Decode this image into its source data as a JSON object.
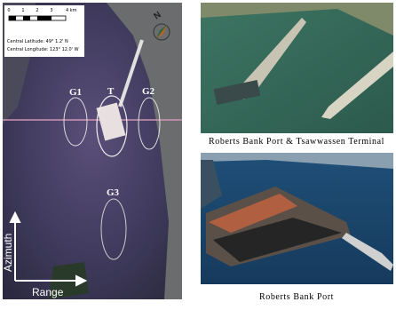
{
  "sar_image": {
    "scale_labels": [
      "0",
      "1",
      "2",
      "3",
      "4 km"
    ],
    "central_latitude": "Central Latitude:    49°  1.2' N",
    "central_longitude": "Central Longitude: 123° 12.0' W",
    "north": "N",
    "targets": [
      "G1",
      "T",
      "G2",
      "G3"
    ],
    "azimuth": "Azimuth",
    "range": "Range"
  },
  "photos": [
    {
      "caption": "Roberts Bank Port & Tsawwassen Terminal"
    },
    {
      "caption": "Roberts Bank Port"
    }
  ]
}
